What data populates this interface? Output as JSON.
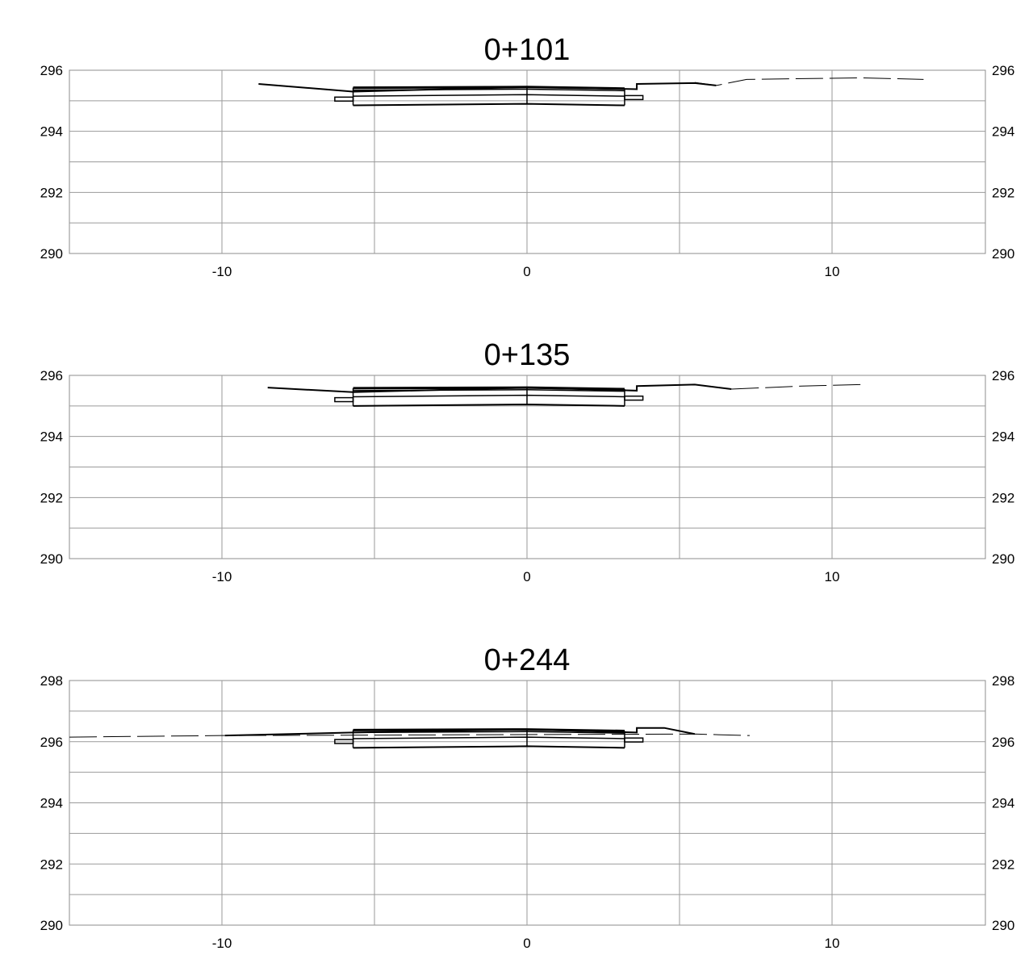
{
  "chart_data": [
    {
      "type": "cross-section",
      "title": "0+101",
      "xlim": [
        -15,
        15
      ],
      "ylim": [
        290,
        296
      ],
      "x_ticks": [
        "-10",
        "0",
        "10"
      ],
      "x_tick_values": [
        -10,
        0,
        10
      ],
      "y_tick_labels": [
        "296",
        "294",
        "292",
        "290"
      ],
      "y_tick_values": [
        296,
        294,
        292,
        290
      ],
      "grid_x": [
        -10,
        -5,
        0,
        5,
        10
      ],
      "grid_y": [
        290,
        291,
        292,
        293,
        294,
        295,
        296
      ],
      "ground_line": [
        [
          5.5,
          295.6
        ],
        [
          6.2,
          295.5
        ],
        [
          7.2,
          295.7
        ],
        [
          11,
          295.75
        ],
        [
          13,
          295.7
        ]
      ],
      "design_surface": [
        [
          -8.8,
          295.55
        ],
        [
          -5.7,
          295.3
        ],
        [
          0,
          295.45
        ],
        [
          3.6,
          295.38
        ],
        [
          3.6,
          295.55
        ],
        [
          5.5,
          295.58
        ],
        [
          6.2,
          295.5
        ]
      ]
    },
    {
      "type": "cross-section",
      "title": "0+135",
      "xlim": [
        -15,
        15
      ],
      "ylim": [
        290,
        296
      ],
      "x_ticks": [
        "-10",
        "0",
        "10"
      ],
      "x_tick_values": [
        -10,
        0,
        10
      ],
      "y_tick_labels": [
        "296",
        "294",
        "292",
        "290"
      ],
      "y_tick_values": [
        296,
        294,
        292,
        290
      ],
      "grid_x": [
        -10,
        -5,
        0,
        5,
        10
      ],
      "grid_y": [
        290,
        291,
        292,
        293,
        294,
        295,
        296
      ],
      "ground_line": [
        [
          6.7,
          295.55
        ],
        [
          9,
          295.65
        ],
        [
          11,
          295.7
        ]
      ],
      "design_surface": [
        [
          -8.5,
          295.6
        ],
        [
          -5.7,
          295.45
        ],
        [
          0,
          295.6
        ],
        [
          3.6,
          295.5
        ],
        [
          3.6,
          295.65
        ],
        [
          5.5,
          295.7
        ],
        [
          6.7,
          295.55
        ]
      ]
    },
    {
      "type": "cross-section",
      "title": "0+244",
      "xlim": [
        -15,
        15
      ],
      "ylim": [
        290,
        298
      ],
      "x_ticks": [
        "-10",
        "0",
        "10"
      ],
      "x_tick_values": [
        -10,
        0,
        10
      ],
      "y_tick_labels": [
        "298",
        "296",
        "294",
        "292",
        "290"
      ],
      "y_tick_values": [
        298,
        296,
        294,
        292,
        290
      ],
      "grid_x": [
        -10,
        -5,
        0,
        5,
        10
      ],
      "grid_y": [
        290,
        291,
        292,
        293,
        294,
        295,
        296,
        297,
        298
      ],
      "ground_line": [
        [
          -15,
          296.15
        ],
        [
          -10,
          296.2
        ],
        [
          5.5,
          296.25
        ],
        [
          7.3,
          296.2
        ]
      ],
      "design_surface": [
        [
          -9.9,
          296.2
        ],
        [
          -5.7,
          296.3
        ],
        [
          0,
          296.4
        ],
        [
          3.6,
          296.3
        ],
        [
          3.6,
          296.45
        ],
        [
          4.5,
          296.45
        ],
        [
          5.5,
          296.25
        ]
      ]
    }
  ]
}
